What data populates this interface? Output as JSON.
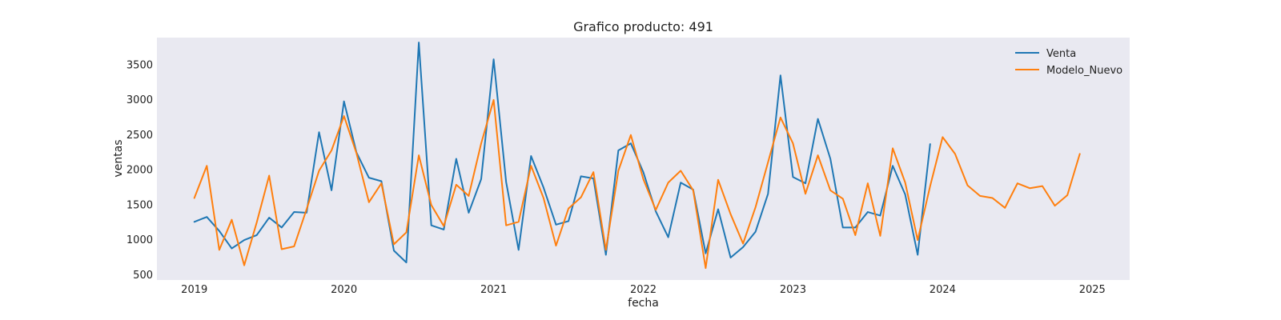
{
  "chart_data": {
    "type": "line",
    "title": "Grafico producto: 491",
    "xlabel": "fecha",
    "ylabel": "ventas",
    "x_ticks": [
      "2019",
      "2020",
      "2021",
      "2022",
      "2023",
      "2024",
      "2025"
    ],
    "y_ticks": [
      500,
      1000,
      1500,
      2000,
      2500,
      3000,
      3500
    ],
    "xlim": [
      "2018-10",
      "2025-04"
    ],
    "ylim": [
      420,
      3880
    ],
    "grid": false,
    "legend_position": "top-right",
    "background_color": "#e9e9f1",
    "x": [
      "2019-01",
      "2019-02",
      "2019-03",
      "2019-04",
      "2019-05",
      "2019-06",
      "2019-07",
      "2019-08",
      "2019-09",
      "2019-10",
      "2019-11",
      "2019-12",
      "2020-01",
      "2020-02",
      "2020-03",
      "2020-04",
      "2020-05",
      "2020-06",
      "2020-07",
      "2020-08",
      "2020-09",
      "2020-10",
      "2020-11",
      "2020-12",
      "2021-01",
      "2021-02",
      "2021-03",
      "2021-04",
      "2021-05",
      "2021-06",
      "2021-07",
      "2021-08",
      "2021-09",
      "2021-10",
      "2021-11",
      "2021-12",
      "2022-01",
      "2022-02",
      "2022-03",
      "2022-04",
      "2022-05",
      "2022-06",
      "2022-07",
      "2022-08",
      "2022-09",
      "2022-10",
      "2022-11",
      "2022-12",
      "2023-01",
      "2023-02",
      "2023-03",
      "2023-04",
      "2023-05",
      "2023-06",
      "2023-07",
      "2023-08",
      "2023-09",
      "2023-10",
      "2023-11",
      "2023-12",
      "2024-01",
      "2024-02",
      "2024-03",
      "2024-04",
      "2024-05",
      "2024-06",
      "2024-07",
      "2024-08",
      "2024-09",
      "2024-10",
      "2024-11",
      "2024-12"
    ],
    "series": [
      {
        "name": "Venta",
        "color": "#1f77b4",
        "values": [
          1250,
          1320,
          1120,
          870,
          990,
          1060,
          1310,
          1170,
          1390,
          1380,
          2530,
          1700,
          2970,
          2240,
          1880,
          1830,
          840,
          670,
          3810,
          1200,
          1140,
          2150,
          1380,
          1860,
          3570,
          1820,
          850,
          2190,
          1740,
          1210,
          1260,
          1900,
          1870,
          780,
          2270,
          2370,
          1960,
          1400,
          1030,
          1810,
          1710,
          800,
          1430,
          740,
          890,
          1110,
          1650,
          3340,
          1890,
          1800,
          2720,
          2150,
          1170,
          1170,
          1390,
          1340,
          2050,
          1640,
          780,
          2360,
          null,
          null,
          null,
          null,
          null,
          null,
          null,
          null,
          null,
          null,
          null,
          null
        ]
      },
      {
        "name": "Modelo_Nuevo",
        "color": "#ff7f0e",
        "values": [
          1590,
          2050,
          850,
          1280,
          630,
          1240,
          1910,
          860,
          900,
          1430,
          1980,
          2270,
          2760,
          2230,
          1530,
          1800,
          930,
          1100,
          2200,
          1490,
          1190,
          1780,
          1620,
          2370,
          2990,
          1200,
          1250,
          2050,
          1590,
          910,
          1440,
          1600,
          1960,
          850,
          1980,
          2490,
          1860,
          1420,
          1810,
          1980,
          1700,
          590,
          1850,
          1360,
          940,
          1460,
          2100,
          2740,
          2370,
          1650,
          2200,
          1700,
          1580,
          1060,
          1800,
          1050,
          2300,
          1810,
          990,
          1760,
          2460,
          2220,
          1770,
          1620,
          1590,
          1450,
          1800,
          1730,
          1760,
          1480,
          1630,
          2220
        ]
      }
    ]
  }
}
